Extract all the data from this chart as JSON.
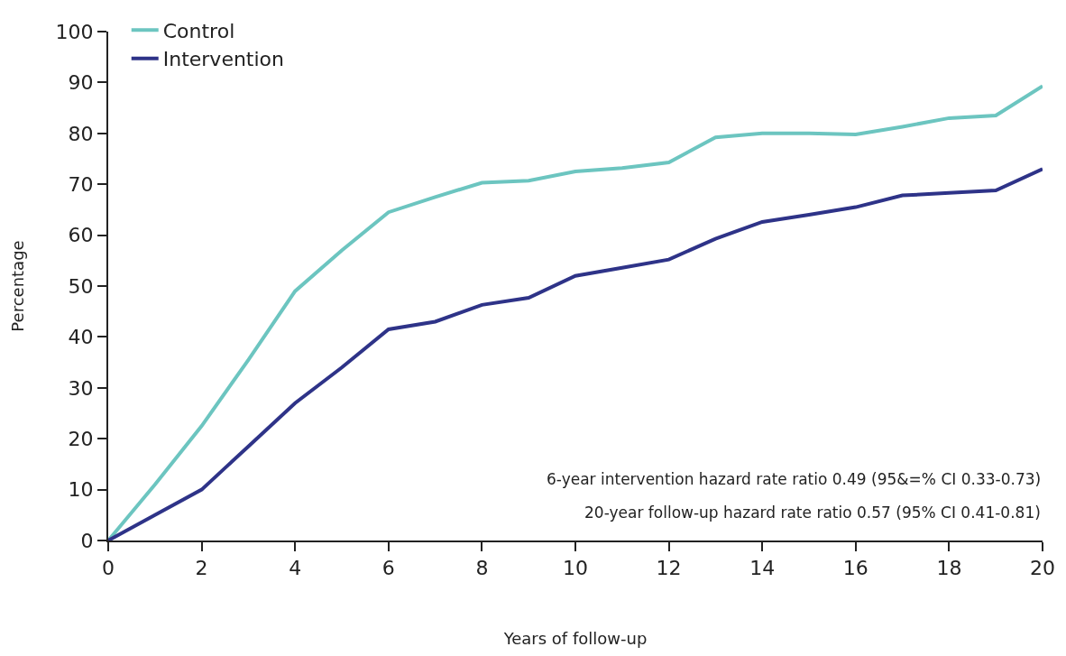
{
  "chart_data": {
    "type": "line",
    "xlabel": "Years of follow-up",
    "ylabel": "Percentage",
    "x": [
      0,
      1,
      2,
      3,
      4,
      5,
      6,
      7,
      8,
      9,
      10,
      11,
      12,
      13,
      14,
      15,
      16,
      17,
      18,
      19,
      20
    ],
    "series": [
      {
        "name": "Control",
        "color": "#6cc5c0",
        "values": [
          0,
          11,
          22.5,
          35.5,
          49,
          57,
          64.5,
          67.5,
          70.3,
          70.7,
          72.5,
          73.2,
          74.3,
          79.2,
          80,
          80,
          79.8,
          81.3,
          83,
          83.5,
          89.3
        ]
      },
      {
        "name": "Intervention",
        "color": "#2e3388",
        "values": [
          0,
          5,
          10,
          18.5,
          27,
          34,
          41.5,
          43,
          46.3,
          47.7,
          52,
          53.6,
          55.2,
          59.3,
          62.6,
          64,
          65.5,
          67.8,
          68.3,
          68.8,
          73
        ]
      }
    ],
    "xlim": [
      0,
      20
    ],
    "xticks": [
      0,
      2,
      4,
      6,
      8,
      10,
      12,
      14,
      16,
      18,
      20
    ],
    "ylim": [
      0,
      100
    ],
    "yticks": [
      0,
      10,
      20,
      30,
      40,
      50,
      60,
      70,
      80,
      90,
      100
    ],
    "grid": false,
    "legend": "top left",
    "marker": "none",
    "line_style": "solid",
    "annotations": [
      "6-year intervention hazard rate ratio 0.49 (95&=% CI 0.33-0.73)",
      "20-year follow-up hazard rate ratio 0.57 (95% CI 0.41-0.81)"
    ]
  }
}
